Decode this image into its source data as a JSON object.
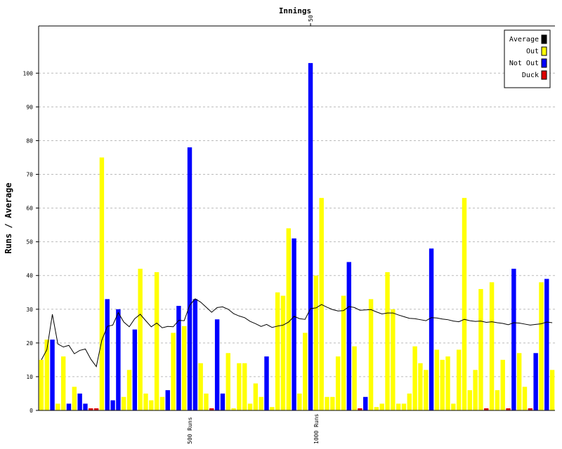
{
  "chart_data": {
    "type": "bar",
    "title": "Innings",
    "y_label": "Runs / Average",
    "x": [
      1,
      2,
      3,
      4,
      5,
      6,
      7,
      8,
      9,
      10,
      11,
      12,
      13,
      14,
      15,
      16,
      17,
      18,
      19,
      20,
      21,
      22,
      23,
      24,
      25,
      26,
      27,
      28,
      29,
      30,
      31,
      32,
      33,
      34,
      35,
      36,
      37,
      38,
      39,
      40,
      41,
      42,
      43,
      44,
      45,
      46,
      47,
      48,
      49,
      50,
      51,
      52,
      53,
      54,
      55,
      56,
      57,
      58,
      59,
      60,
      61,
      62,
      63,
      64,
      65,
      66,
      67,
      68,
      69,
      70,
      71,
      72,
      73,
      74,
      75,
      76,
      77,
      78,
      79,
      80,
      81,
      82,
      83,
      84,
      85,
      86,
      87,
      88,
      89,
      90,
      91,
      92,
      93,
      94
    ],
    "xlim": [
      0.5,
      94.5
    ],
    "xticks": [
      50
    ],
    "ylim": [
      0,
      114
    ],
    "yticks": [
      0,
      10,
      20,
      30,
      40,
      50,
      60,
      70,
      80,
      90,
      100
    ],
    "grid": true,
    "legend": "top-right",
    "series": [
      {
        "name": "Average",
        "type": "line",
        "color": "#000000",
        "values": [
          15,
          18,
          28.5,
          19.7,
          18.8,
          19.3,
          16.8,
          17.8,
          18.2,
          15.2,
          13,
          20.8,
          24.9,
          25.3,
          29,
          26.2,
          24.8,
          27.2,
          28.5,
          26.6,
          24.8,
          25.9,
          24.5,
          24.9,
          24.8,
          26.7,
          26.6,
          31.2,
          33.1,
          32.1,
          30.6,
          29.1,
          30.5,
          30.7,
          30,
          28.7,
          28,
          27.5,
          26.4,
          25.7,
          24.9,
          25.5,
          24.6,
          25,
          25.3,
          26.2,
          27.9,
          27.2,
          27,
          30.2,
          30.4,
          31.4,
          30.6,
          29.9,
          29.5,
          29.6,
          30.8,
          30.5,
          29.7,
          29.8,
          29.9,
          29.2,
          28.6,
          28.9,
          28.9,
          28.3,
          27.8,
          27.3,
          27.2,
          26.9,
          26.6,
          27.5,
          27.4,
          27.1,
          26.9,
          26.5,
          26.3,
          27,
          26.6,
          26.4,
          26.5,
          26.1,
          26.3,
          26,
          25.8,
          25.4,
          26,
          25.9,
          25.6,
          25.3,
          25.5,
          25.7,
          26.2,
          26
        ]
      },
      {
        "name": "Out",
        "type": "bar",
        "color": "#ffff00",
        "values": [
          15,
          21,
          null,
          2,
          16,
          null,
          7,
          null,
          null,
          null,
          null,
          75,
          null,
          null,
          null,
          4,
          12,
          null,
          42,
          5,
          3,
          41,
          4,
          null,
          23,
          null,
          25,
          null,
          null,
          14,
          5,
          null,
          null,
          null,
          17,
          0,
          14,
          14,
          2,
          8,
          4,
          null,
          1,
          35,
          34,
          54,
          null,
          5,
          23,
          null,
          40,
          63,
          4,
          4,
          16,
          34,
          null,
          19,
          null,
          null,
          33,
          1,
          2,
          41,
          30,
          2,
          2,
          5,
          19,
          14,
          12,
          null,
          18,
          15,
          16,
          2,
          18,
          63,
          6,
          12,
          36,
          null,
          38,
          6,
          15,
          null,
          null,
          17,
          7,
          null,
          null,
          38,
          null,
          12
        ]
      },
      {
        "name": "Not Out",
        "type": "bar",
        "color": "#0000ff",
        "values": [
          null,
          null,
          21,
          null,
          null,
          2,
          null,
          5,
          2,
          null,
          null,
          null,
          33,
          3,
          30,
          null,
          null,
          24,
          null,
          null,
          null,
          null,
          null,
          6,
          null,
          31,
          null,
          78,
          33,
          null,
          null,
          null,
          27,
          5,
          null,
          null,
          null,
          null,
          null,
          null,
          null,
          16,
          null,
          null,
          null,
          null,
          51,
          null,
          null,
          103,
          null,
          null,
          null,
          null,
          null,
          null,
          44,
          null,
          null,
          4,
          null,
          null,
          null,
          null,
          null,
          null,
          null,
          null,
          null,
          null,
          null,
          48,
          null,
          null,
          null,
          null,
          null,
          null,
          null,
          null,
          null,
          null,
          null,
          null,
          null,
          null,
          42,
          null,
          null,
          null,
          17,
          null,
          39,
          null
        ]
      },
      {
        "name": "Duck",
        "type": "bar",
        "color": "#dd0000",
        "values": [
          null,
          null,
          null,
          null,
          null,
          null,
          null,
          null,
          null,
          0,
          0,
          null,
          null,
          null,
          null,
          null,
          null,
          null,
          null,
          null,
          null,
          null,
          null,
          null,
          null,
          null,
          null,
          null,
          null,
          null,
          null,
          0,
          null,
          null,
          null,
          null,
          null,
          null,
          null,
          null,
          null,
          null,
          null,
          null,
          null,
          null,
          null,
          null,
          null,
          null,
          null,
          null,
          null,
          null,
          null,
          null,
          null,
          null,
          0,
          null,
          null,
          null,
          null,
          null,
          null,
          null,
          null,
          null,
          null,
          null,
          null,
          null,
          null,
          null,
          null,
          null,
          null,
          null,
          null,
          null,
          null,
          0,
          null,
          null,
          null,
          0,
          null,
          null,
          null,
          0,
          null,
          null,
          null,
          null
        ]
      }
    ],
    "annotations": [
      {
        "text": "500 Runs",
        "x": 28
      },
      {
        "text": "1000 Runs",
        "x": 51
      }
    ]
  }
}
